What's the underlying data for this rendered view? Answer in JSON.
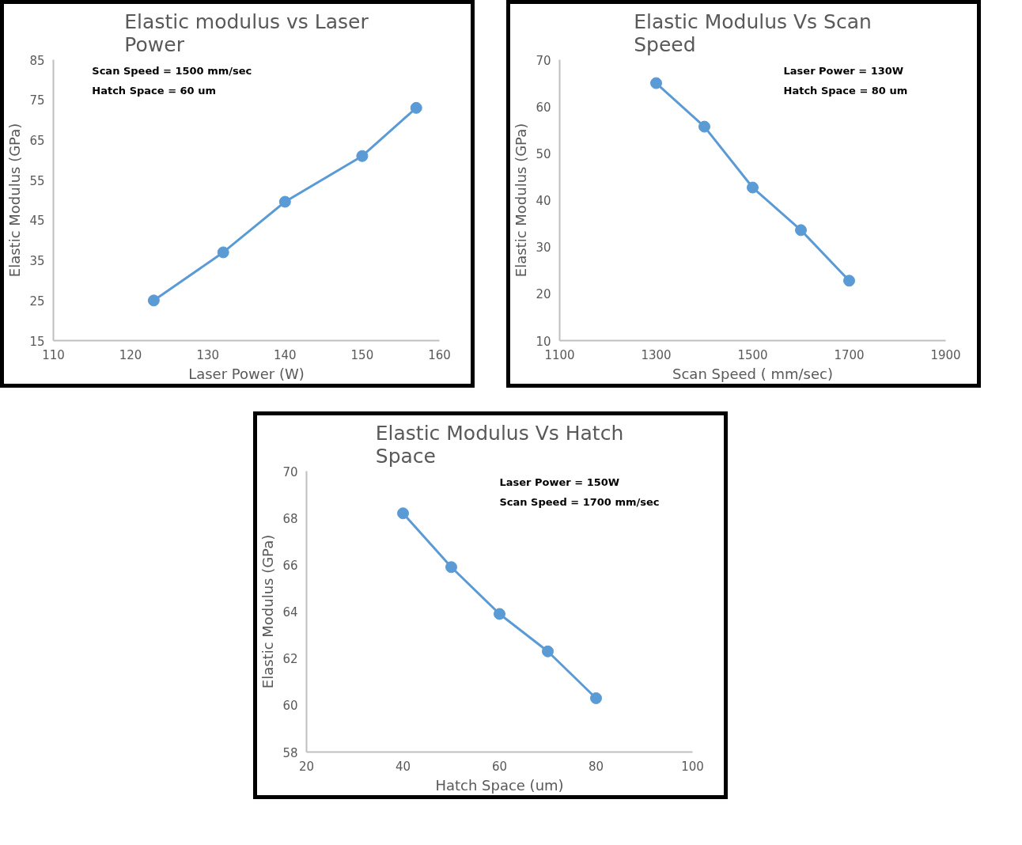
{
  "chart_data": [
    {
      "type": "line",
      "title": "Elastic modulus vs Laser Power",
      "xlabel": "Laser Power (W)",
      "ylabel": "Elastic Modulus (GPa)",
      "annotations": [
        "Scan Speed = 1500 mm/sec",
        "Hatch Space = 60 um"
      ],
      "x": [
        123,
        132,
        140,
        150,
        157
      ],
      "series": [
        {
          "color": "#5b9bd5",
          "values": [
            25,
            37,
            49.6,
            61,
            73
          ]
        }
      ],
      "xlim": [
        110,
        160
      ],
      "xticks": [
        110,
        120,
        130,
        140,
        150,
        160
      ],
      "ylim": [
        15,
        85
      ],
      "yticks": [
        15,
        25,
        35,
        45,
        55,
        65,
        75,
        85
      ],
      "grid": false,
      "marker": "circle",
      "line_style": "solid"
    },
    {
      "type": "line",
      "title": "Elastic Modulus Vs Scan Speed",
      "xlabel": "Scan Speed ( mm/sec)",
      "ylabel": "Elastic Modulus (GPa)",
      "annotations": [
        "Laser Power = 130W",
        "Hatch Space = 80 um"
      ],
      "x": [
        1300,
        1400,
        1500,
        1600,
        1700
      ],
      "series": [
        {
          "color": "#5b9bd5",
          "values": [
            65,
            55.7,
            42.7,
            33.6,
            22.8
          ]
        }
      ],
      "xlim": [
        1100,
        1900
      ],
      "xticks": [
        1100,
        1300,
        1500,
        1700,
        1900
      ],
      "ylim": [
        10,
        70
      ],
      "yticks": [
        10,
        20,
        30,
        40,
        50,
        60,
        70
      ],
      "grid": false,
      "marker": "circle",
      "line_style": "solid"
    },
    {
      "type": "line",
      "title": "Elastic Modulus Vs Hatch Space",
      "xlabel": "Hatch Space (um)",
      "ylabel": "Elastic Modulus (GPa)",
      "annotations": [
        "Laser Power = 150W",
        "Scan Speed = 1700 mm/sec"
      ],
      "x": [
        40,
        50,
        60,
        70,
        80
      ],
      "series": [
        {
          "color": "#5b9bd5",
          "values": [
            68.2,
            65.9,
            63.9,
            62.3,
            60.3
          ]
        }
      ],
      "xlim": [
        20,
        100
      ],
      "xticks": [
        20,
        40,
        60,
        80,
        100
      ],
      "ylim": [
        58,
        70
      ],
      "yticks": [
        58,
        60,
        62,
        64,
        66,
        68,
        70
      ],
      "grid": false,
      "marker": "circle",
      "line_style": "solid"
    }
  ]
}
